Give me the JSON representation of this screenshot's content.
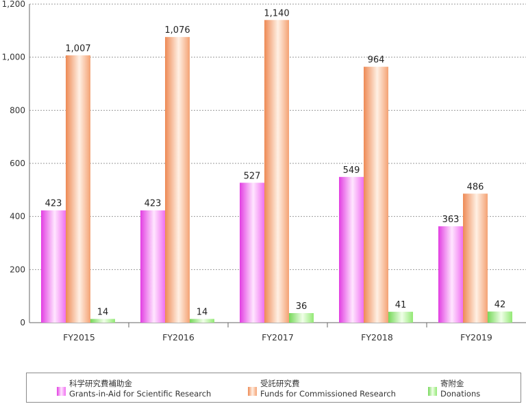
{
  "chart_data": {
    "type": "bar",
    "categories": [
      "FY2015",
      "FY2016",
      "FY2017",
      "FY2018",
      "FY2019"
    ],
    "series": [
      {
        "name": "科学研究費補助金 Grants-in-Aid for Scientific Research",
        "name_ja": "科学研究費補助金",
        "name_en": "Grants-in-Aid for Scientific Research",
        "values": [
          423,
          423,
          527,
          549,
          363
        ],
        "color": "#f060f0"
      },
      {
        "name": "受託研究費 Funds for Commissioned Research",
        "name_ja": "受託研究費",
        "name_en": "Funds for Commissioned Research",
        "values": [
          1007,
          1076,
          1140,
          964,
          486
        ],
        "color": "#f5a070"
      },
      {
        "name": "寄附金 Donations",
        "name_ja": "寄附金",
        "name_en": "Donations",
        "values": [
          14,
          14,
          36,
          41,
          42
        ],
        "color": "#8ee870"
      }
    ],
    "data_labels": [
      [
        "423",
        "1,007",
        "14"
      ],
      [
        "423",
        "1,076",
        "14"
      ],
      [
        "527",
        "1,140",
        "36"
      ],
      [
        "549",
        "964",
        "41"
      ],
      [
        "363",
        "486",
        "42"
      ]
    ],
    "yticks": [
      "0",
      "200",
      "400",
      "600",
      "800",
      "1,000",
      "1,200"
    ],
    "ylim": [
      0,
      1200
    ],
    "grid": true,
    "legend_position": "bottom"
  }
}
